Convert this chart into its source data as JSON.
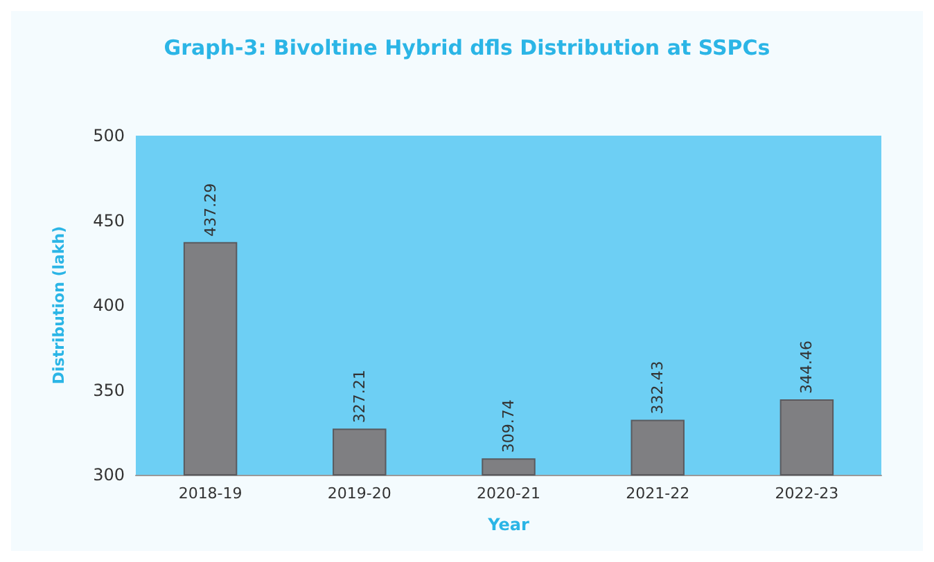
{
  "chart_data": {
    "type": "bar",
    "title": "Graph-3: Bivoltine Hybrid dfls Distribution at SSPCs",
    "xlabel": "Year",
    "ylabel": "Distribution (lakh)",
    "categories": [
      "2018-19",
      "2019-20",
      "2020-21",
      "2021-22",
      "2022-23"
    ],
    "values": [
      437.29,
      327.21,
      309.74,
      332.43,
      344.46
    ],
    "color": "#7f7f82",
    "ylim": [
      300,
      500
    ],
    "yticks": [
      300,
      350,
      400,
      450,
      500
    ],
    "grid": false,
    "data_labels": true
  }
}
